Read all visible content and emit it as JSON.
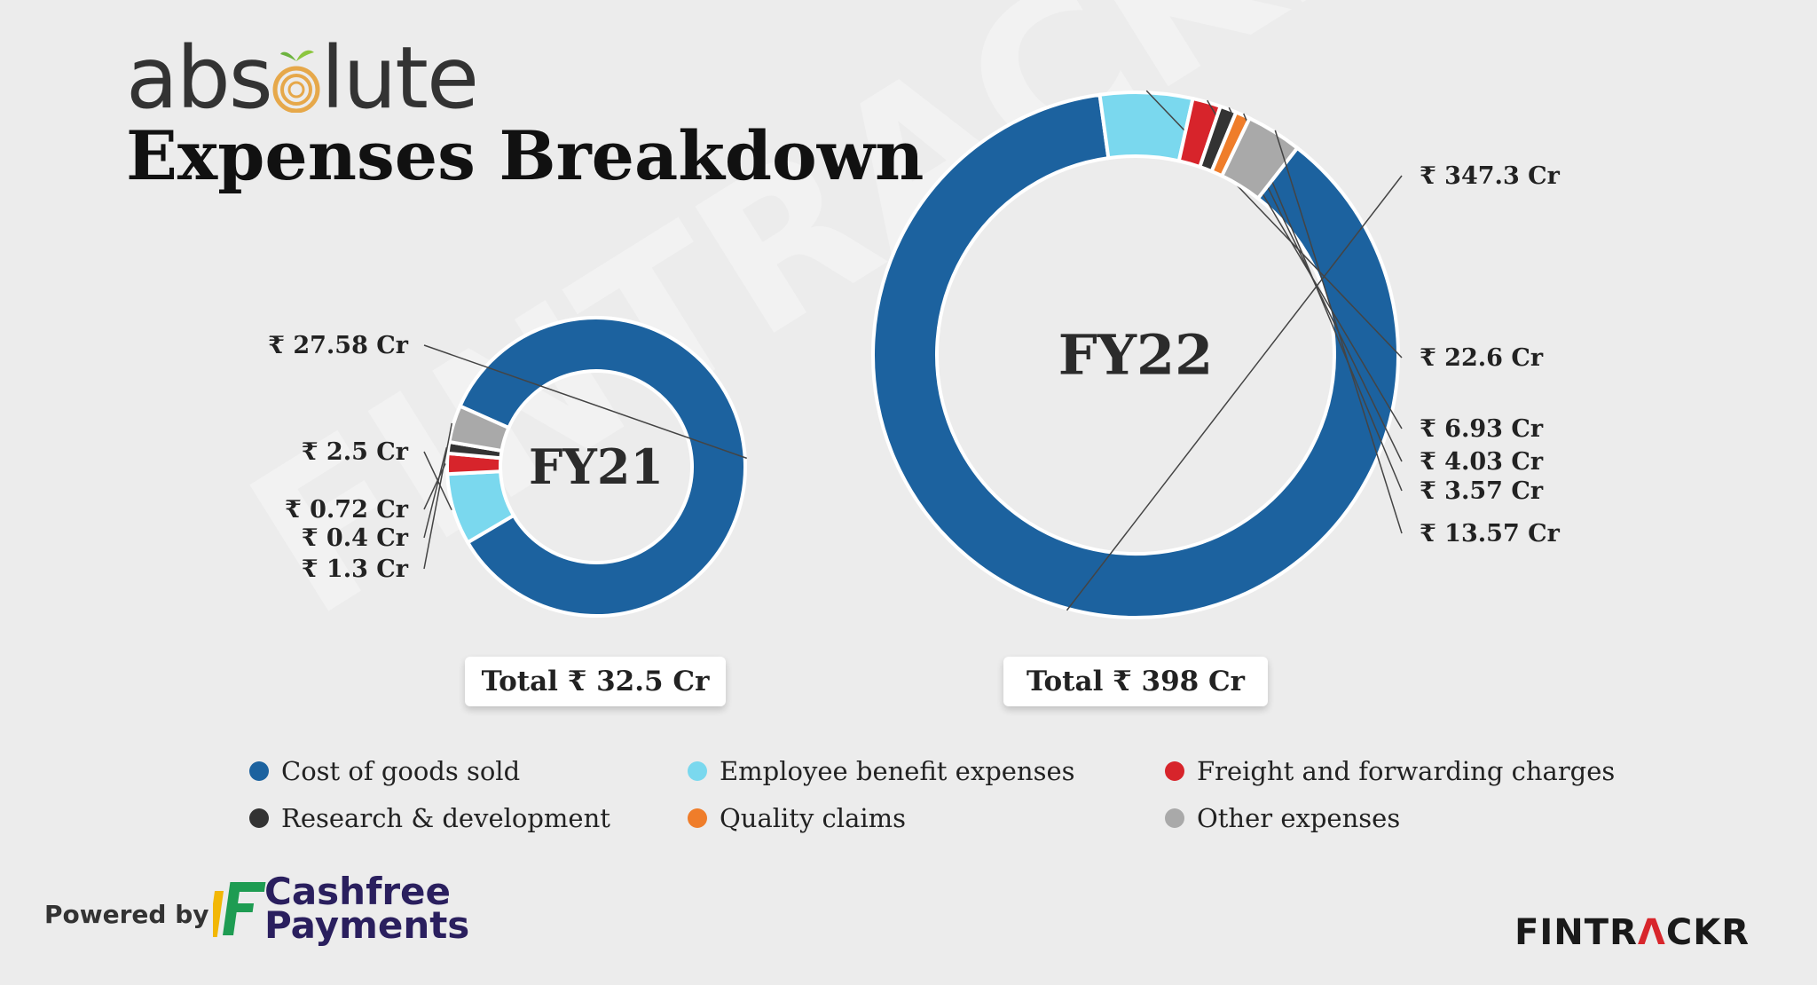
{
  "brand": {
    "logo_text_before": "abs",
    "logo_text_after": "lute",
    "title": "Expenses Breakdown"
  },
  "watermark": "FINTRACKR",
  "chart_data": [
    {
      "type": "pie",
      "subtype": "donut",
      "center_label": "FY21",
      "total_label": "Total ₹ 32.5 Cr",
      "unit": "₹ Cr",
      "categories": [
        "Cost of goods sold",
        "Employee benefit expenses",
        "Freight and forwarding charges",
        "Research & development",
        "Other expenses"
      ],
      "values": [
        27.58,
        2.5,
        0.72,
        0.4,
        1.3
      ],
      "labels": [
        "₹ 27.58 Cr",
        "₹ 2.5 Cr",
        "₹ 0.72 Cr",
        "₹ 0.4 Cr",
        "₹ 1.3 Cr"
      ],
      "colors": [
        "#1c629f",
        "#7ad8ee",
        "#d7242b",
        "#333333",
        "#a9a9a9"
      ]
    },
    {
      "type": "pie",
      "subtype": "donut",
      "center_label": "FY22",
      "total_label": "Total ₹ 398 Cr",
      "unit": "₹ Cr",
      "categories": [
        "Cost of goods sold",
        "Employee benefit expenses",
        "Freight and forwarding charges",
        "Research & development",
        "Quality claims",
        "Other expenses"
      ],
      "values": [
        347.3,
        22.6,
        6.93,
        4.03,
        3.57,
        13.57
      ],
      "labels": [
        "₹ 347.3 Cr",
        "₹ 22.6 Cr",
        "₹ 6.93 Cr",
        "₹ 4.03 Cr",
        "₹ 3.57 Cr",
        "₹ 13.57 Cr"
      ],
      "colors": [
        "#1c629f",
        "#7ad8ee",
        "#d7242b",
        "#333333",
        "#ef7d2a",
        "#a9a9a9"
      ]
    }
  ],
  "legend": [
    {
      "label": "Cost of goods sold",
      "color": "#1c629f"
    },
    {
      "label": "Employee benefit expenses",
      "color": "#7ad8ee"
    },
    {
      "label": "Freight and forwarding charges",
      "color": "#d7242b"
    },
    {
      "label": "Research & development",
      "color": "#333333"
    },
    {
      "label": "Quality claims",
      "color": "#ef7d2a"
    },
    {
      "label": "Other expenses",
      "color": "#a9a9a9"
    }
  ],
  "footer": {
    "powered_by": "Powered by",
    "cashfree_line1": "Cashfree",
    "cashfree_line2": "Payments",
    "fintrackr_part1": "FINTR",
    "fintrackr_part2": "Λ",
    "fintrackr_part3": "CKR"
  }
}
